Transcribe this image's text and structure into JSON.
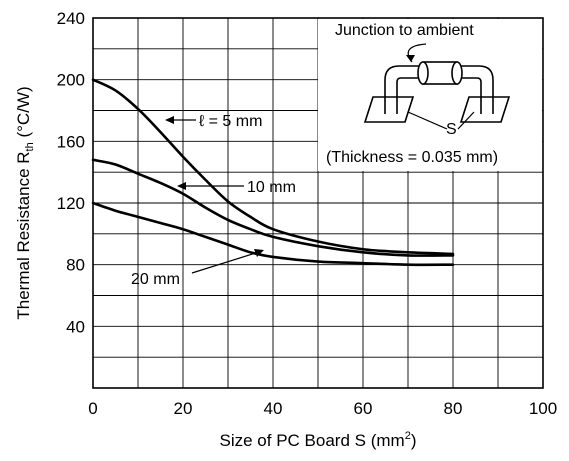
{
  "chart_data": {
    "type": "line",
    "xlabel": "Size of PC Board S (mm",
    "xlabel_sup": "2",
    "xlabel_end": ")",
    "ylabel": "Thermal Resistance R",
    "ylabel_sub": "th",
    "ylabel_unit": " (°C/W)",
    "xlim": [
      0,
      100
    ],
    "ylim": [
      0,
      240
    ],
    "xticks": [
      0,
      20,
      40,
      60,
      80,
      100
    ],
    "yticks": [
      40,
      80,
      120,
      160,
      200,
      240
    ],
    "grid": true,
    "series": [
      {
        "name": "ℓ = 5 mm",
        "x": [
          0,
          5,
          10,
          15,
          20,
          25,
          30,
          35,
          40,
          50,
          60,
          70,
          80
        ],
        "y": [
          200,
          193,
          181,
          166,
          150,
          135,
          121,
          111,
          103,
          95,
          90,
          88,
          87
        ]
      },
      {
        "name": "10 mm",
        "x": [
          0,
          5,
          10,
          15,
          20,
          25,
          30,
          35,
          40,
          50,
          60,
          70,
          80
        ],
        "y": [
          148,
          145,
          139,
          133,
          126,
          117,
          109,
          103,
          98,
          92,
          88,
          86,
          86
        ]
      },
      {
        "name": "20 mm",
        "x": [
          0,
          5,
          10,
          15,
          20,
          25,
          30,
          35,
          40,
          50,
          60,
          70,
          80
        ],
        "y": [
          120,
          115,
          111,
          107,
          103,
          98,
          93,
          88,
          85,
          82,
          81,
          80,
          80
        ]
      }
    ],
    "annotations": {
      "label_5mm": "ℓ = 5 mm",
      "label_10mm": "10 mm",
      "label_20mm": "20 mm",
      "inset_title": "Junction to ambient",
      "inset_s": "S",
      "inset_thickness": "(Thickness = 0.035 mm)"
    }
  }
}
